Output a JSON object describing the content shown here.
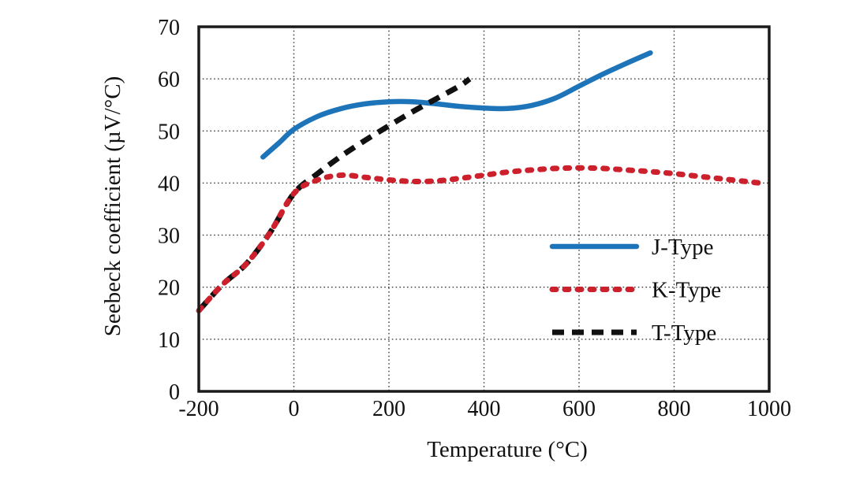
{
  "figure": {
    "background": "#ffffff",
    "frame_color": "#1a1a1a",
    "grid_color": "#3a3a3a"
  },
  "chart_data": {
    "type": "line",
    "title": "",
    "xlabel": "Temperature (°C)",
    "ylabel": "Seebeck coefficient (µV/°C)",
    "xlim": [
      -200,
      1000
    ],
    "ylim": [
      0,
      70
    ],
    "x_ticks": [
      -200,
      0,
      200,
      400,
      600,
      800,
      1000
    ],
    "y_ticks": [
      0,
      10,
      20,
      30,
      40,
      50,
      60,
      70
    ],
    "grid": true,
    "grid_style": "dotted",
    "legend_position": "inside-right",
    "draw_order": [
      0,
      2,
      1
    ],
    "series": [
      {
        "name": "J-Type",
        "color": "#1e74b8",
        "style": "solid",
        "x": [
          -65,
          -30,
          0,
          50,
          100,
          150,
          200,
          250,
          300,
          350,
          400,
          450,
          500,
          550,
          600,
          650,
          700,
          750
        ],
        "y": [
          45,
          47.8,
          50.3,
          52.8,
          54.3,
          55.2,
          55.6,
          55.6,
          55.2,
          54.7,
          54.4,
          54.3,
          54.9,
          56.3,
          58.6,
          60.9,
          63,
          65
        ]
      },
      {
        "name": "K-Type",
        "color": "#cc202c",
        "style": "dotted",
        "x": [
          -200,
          -150,
          -100,
          -50,
          0,
          50,
          100,
          150,
          200,
          250,
          300,
          350,
          400,
          450,
          500,
          550,
          600,
          650,
          700,
          750,
          800,
          850,
          900,
          950,
          980
        ],
        "y": [
          15.5,
          20.5,
          24.5,
          30.5,
          38,
          40.6,
          41.5,
          41.1,
          40.6,
          40.3,
          40.4,
          40.9,
          41.5,
          42.1,
          42.5,
          42.8,
          42.9,
          42.8,
          42.5,
          42.2,
          41.8,
          41.3,
          40.8,
          40.3,
          40
        ]
      },
      {
        "name": "T-Type",
        "color": "#111111",
        "style": "dashed",
        "x": [
          -200,
          -150,
          -100,
          -50,
          0,
          50,
          100,
          150,
          200,
          250,
          300,
          350,
          370
        ],
        "y": [
          15.5,
          20.5,
          24.5,
          30.5,
          38,
          41.8,
          45.2,
          48.2,
          51,
          53.7,
          56.2,
          58.7,
          60
        ]
      }
    ]
  }
}
